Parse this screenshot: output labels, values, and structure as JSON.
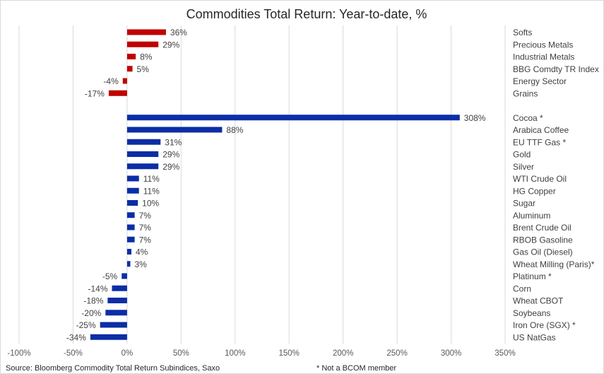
{
  "chart_data": {
    "type": "bar",
    "orientation": "horizontal",
    "title": "Commodities Total Return: Year-to-date, %",
    "xlim": [
      -100,
      350
    ],
    "x_ticks": [
      -100,
      -50,
      0,
      50,
      100,
      150,
      200,
      250,
      300,
      350
    ],
    "x_tick_labels": [
      "-100%",
      "-50%",
      "0%",
      "50%",
      "100%",
      "150%",
      "200%",
      "250%",
      "300%",
      "350%"
    ],
    "grid": "vertical",
    "source": "Source: Bloomberg Commodity Total Return Subindices, Saxo",
    "note": "* Not a BCOM member",
    "groups": [
      {
        "color": "#c00000",
        "categories": [
          "Softs",
          "Precious Metals",
          "Industrial Metals",
          "BBG Comdty TR Index",
          "Energy Sector",
          "Grains"
        ],
        "values": [
          36,
          29,
          8,
          5,
          -4,
          -17
        ],
        "labels": [
          "36%",
          "29%",
          "8%",
          "5%",
          "-4%",
          "-17%"
        ]
      },
      {
        "color": "#0b2ea6",
        "categories": [
          "Cocoa *",
          "Arabica Coffee",
          "EU TTF Gas *",
          "Gold",
          "Silver",
          "WTI Crude Oil",
          "HG Copper",
          "Sugar",
          "Aluminum",
          "Brent Crude Oil",
          "RBOB Gasoline",
          "Gas Oil (Diesel)",
          "Wheat Milling (Paris)*",
          "Platinum *",
          "Corn",
          "Wheat CBOT",
          "Soybeans",
          "Iron Ore (SGX) *",
          "US NatGas"
        ],
        "values": [
          308,
          88,
          31,
          29,
          29,
          11,
          11,
          10,
          7,
          7,
          7,
          4,
          3,
          -5,
          -14,
          -18,
          -20,
          -25,
          -34
        ],
        "labels": [
          "308%",
          "88%",
          "31%",
          "29%",
          "29%",
          "11%",
          "11%",
          "10%",
          "7%",
          "7%",
          "7%",
          "4%",
          "3%",
          "-5%",
          "-14%",
          "-18%",
          "-20%",
          "-25%",
          "-34%"
        ]
      }
    ]
  }
}
